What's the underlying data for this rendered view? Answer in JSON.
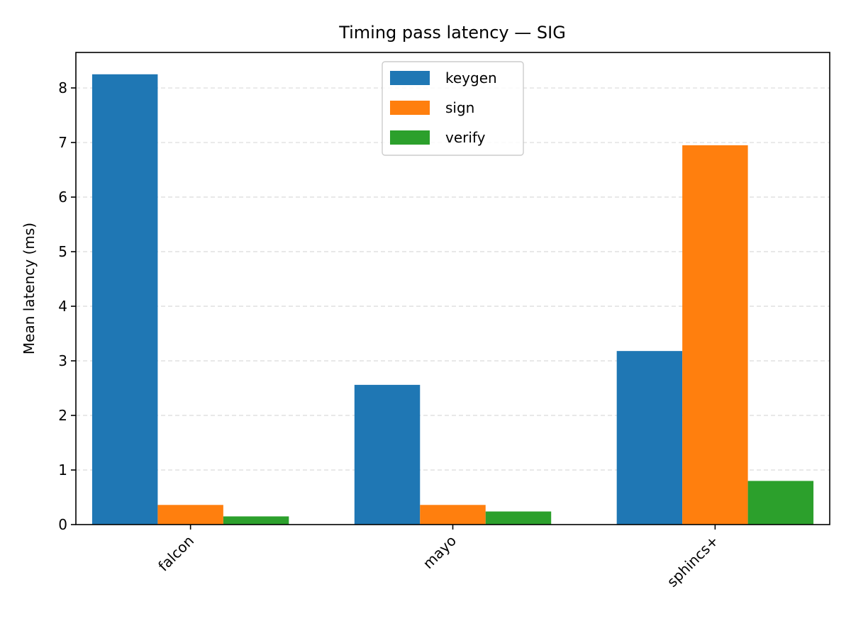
{
  "chart_data": {
    "type": "bar",
    "title": "Timing pass latency — SIG",
    "xlabel": "",
    "ylabel": "Mean latency (ms)",
    "categories": [
      "falcon",
      "mayo",
      "sphincs+"
    ],
    "series": [
      {
        "name": "keygen",
        "color": "#1f77b4",
        "values": [
          8.25,
          2.56,
          3.18
        ]
      },
      {
        "name": "sign",
        "color": "#ff7f0e",
        "values": [
          0.36,
          0.36,
          6.95
        ]
      },
      {
        "name": "verify",
        "color": "#2ca02c",
        "values": [
          0.15,
          0.24,
          0.8
        ]
      }
    ],
    "ylim": [
      0,
      8.65
    ],
    "yticks": [
      0,
      1,
      2,
      3,
      4,
      5,
      6,
      7,
      8
    ],
    "grid": "y-dashed",
    "legend_position": "upper center"
  }
}
